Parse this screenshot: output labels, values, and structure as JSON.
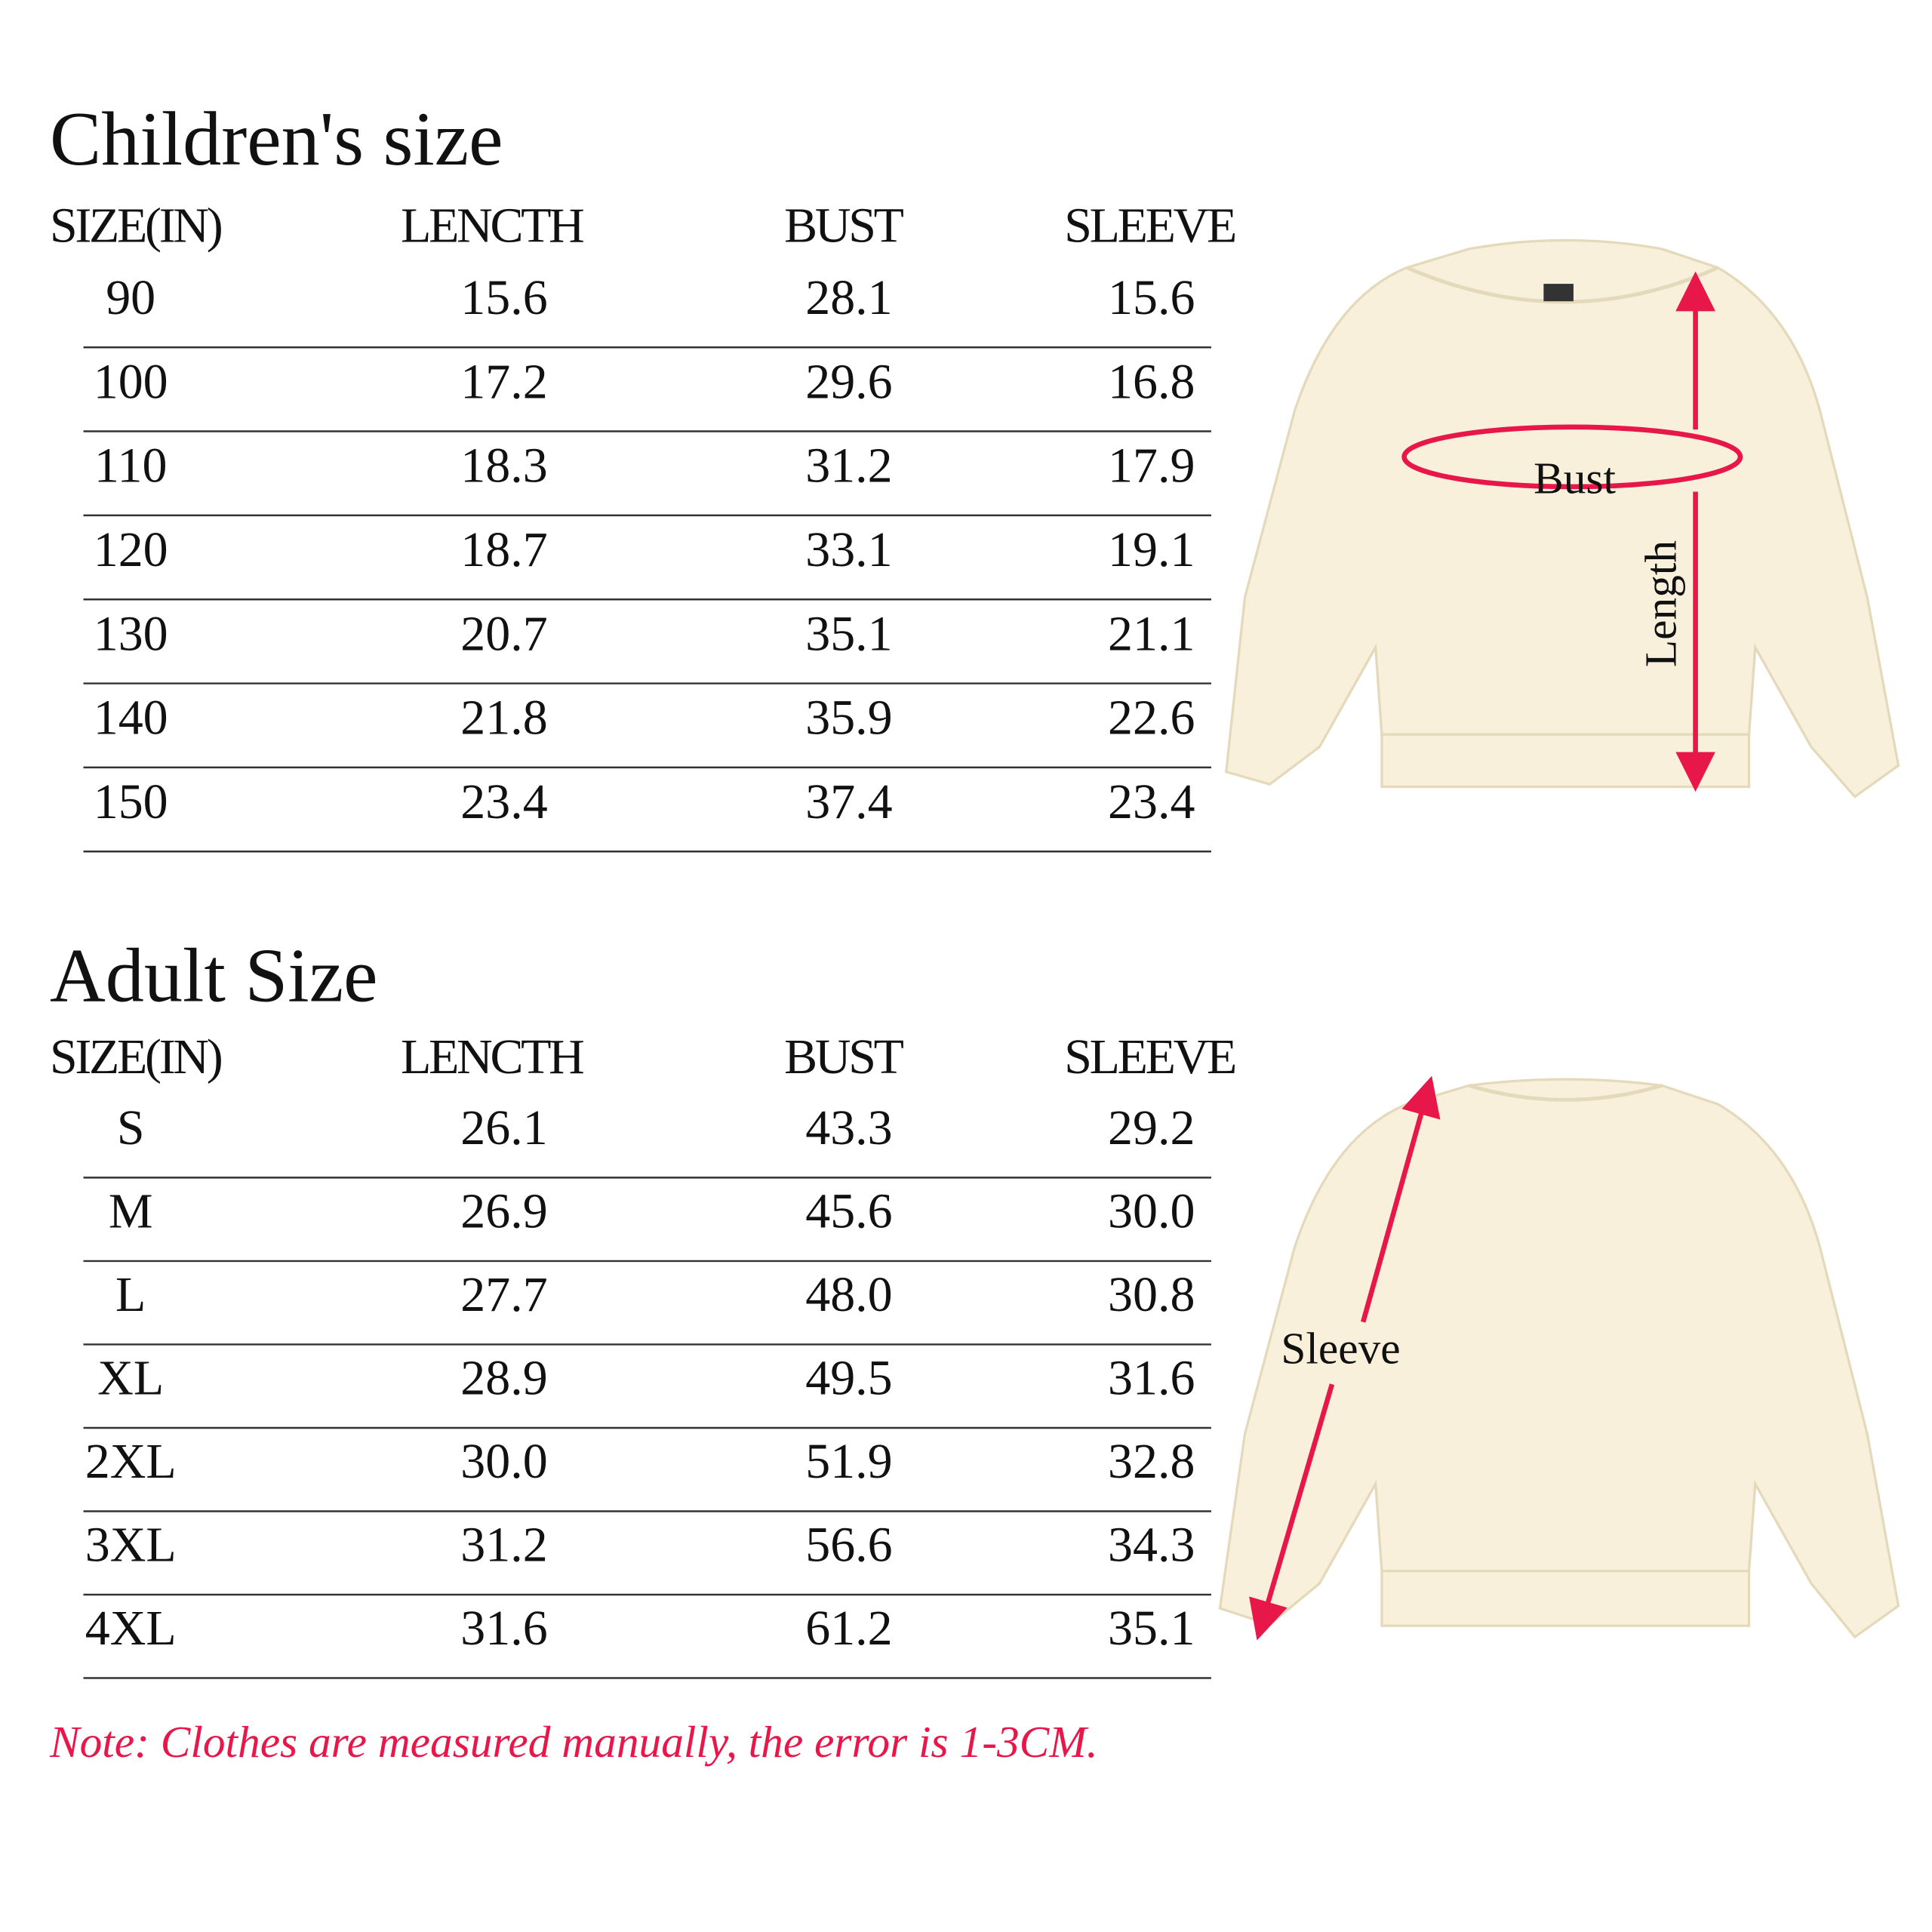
{
  "children_size": {
    "title": "Children's size",
    "headers": [
      "SIZE(IN)",
      "LENCTH",
      "BUST",
      "SLEEVE"
    ],
    "rows": [
      [
        "90",
        "15.6",
        "28.1",
        "15.6"
      ],
      [
        "100",
        "17.2",
        "29.6",
        "16.8"
      ],
      [
        "110",
        "18.3",
        "31.2",
        "17.9"
      ],
      [
        "120",
        "18.7",
        "33.1",
        "19.1"
      ],
      [
        "130",
        "20.7",
        "35.1",
        "21.1"
      ],
      [
        "140",
        "21.8",
        "35.9",
        "22.6"
      ],
      [
        "150",
        "23.4",
        "37.4",
        "23.4"
      ]
    ]
  },
  "adult_size": {
    "title": "Adult Size",
    "headers": [
      "SIZE(IN)",
      "LENCTH",
      "BUST",
      "SLEEVE"
    ],
    "rows": [
      [
        "S",
        "26.1",
        "43.3",
        "29.2"
      ],
      [
        "M",
        "26.9",
        "45.6",
        "30.0"
      ],
      [
        "L",
        "27.7",
        "48.0",
        "30.8"
      ],
      [
        "XL",
        "28.9",
        "49.5",
        "31.6"
      ],
      [
        "2XL",
        "30.0",
        "51.9",
        "32.8"
      ],
      [
        "3XL",
        "31.2",
        "56.6",
        "34.3"
      ],
      [
        "4XL",
        "31.6",
        "61.2",
        "35.1"
      ]
    ]
  },
  "front_diagram": {
    "bust": "Bust",
    "length": "Length"
  },
  "back_diagram": {
    "sleeve": "Sleeve"
  },
  "note": "Note: Clothes are measured manually, the error is 1-3CM."
}
